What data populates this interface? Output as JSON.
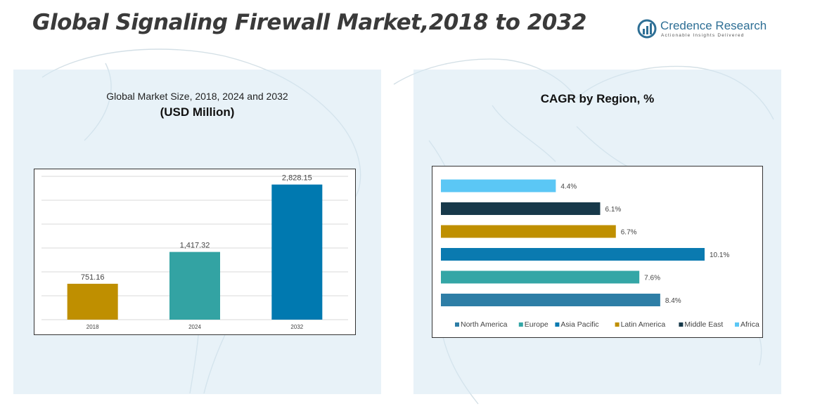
{
  "page": {
    "title": "Global Signaling Firewall Market,2018 to 2032"
  },
  "brand": {
    "name": "Credence Research",
    "tagline": "Actionable Insights Delivered",
    "color": "#2e6f95"
  },
  "left_panel": {
    "title_line1": "Global Market Size, 2018, 2024 and 2032",
    "title_line2": "(USD Million)"
  },
  "right_panel": {
    "title": "CAGR by Region, %"
  },
  "chart_data": [
    {
      "type": "bar",
      "title": "Global Market Size, 2018, 2024 and 2032 (USD Million)",
      "categories": [
        "2018",
        "2024",
        "2032"
      ],
      "values": [
        751.16,
        1417.32,
        2828.15
      ],
      "value_labels": [
        "751.16",
        "1,417.32",
        "2,828.15"
      ],
      "colors": [
        "#bf8f00",
        "#33a3a3",
        "#0079b0"
      ],
      "ylim": [
        0,
        3000
      ],
      "grid": true,
      "legend": "none"
    },
    {
      "type": "bar",
      "orientation": "horizontal",
      "title": "CAGR by Region, %",
      "categories": [
        "North America",
        "Europe",
        "Asia Pacific",
        "Latin America",
        "Middle East",
        "Africa"
      ],
      "values": [
        8.4,
        7.6,
        10.1,
        6.7,
        6.1,
        4.4
      ],
      "value_labels": [
        "8.4%",
        "7.6%",
        "10.1%",
        "6.7%",
        "6.1%",
        "4.4%"
      ],
      "colors": [
        "#2e7ea6",
        "#34a6a6",
        "#0a7ab0",
        "#bf8f00",
        "#17394a",
        "#5bc7f5"
      ],
      "xlim": [
        0,
        10.1
      ],
      "grid": false,
      "legend": "bottom"
    }
  ]
}
